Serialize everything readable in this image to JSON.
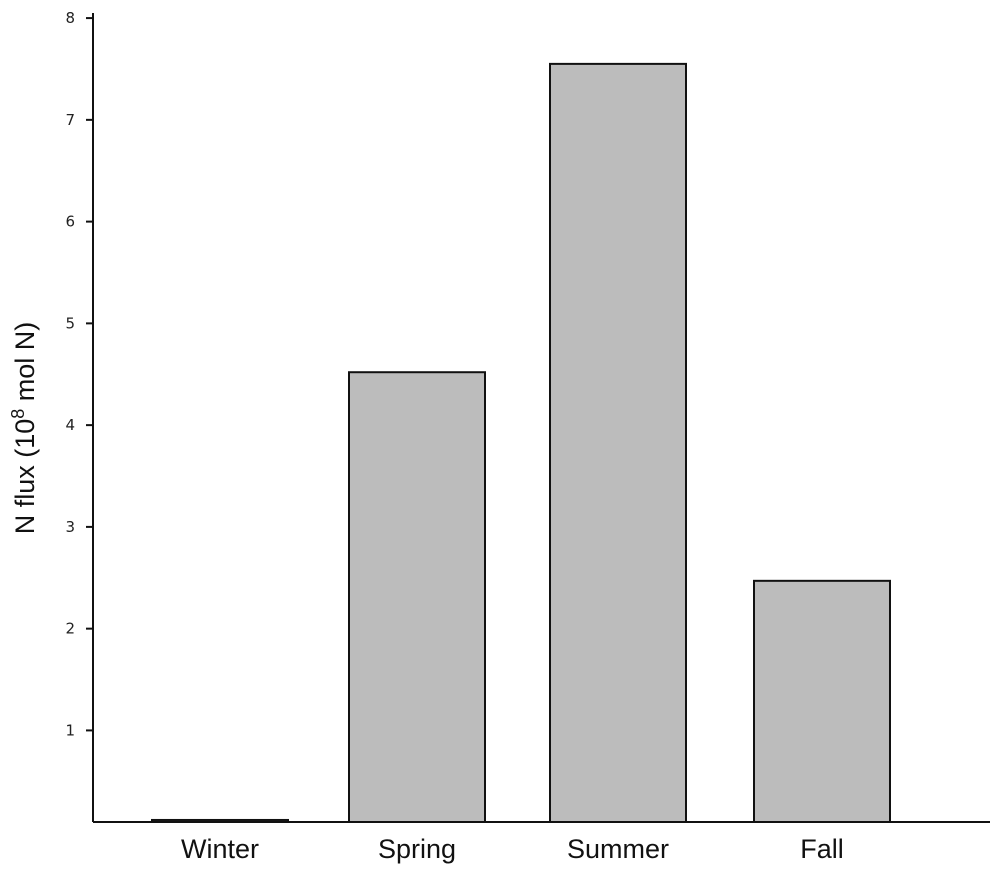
{
  "chart_data": {
    "type": "bar",
    "categories": [
      "Winter",
      "Spring",
      "Summer",
      "Fall"
    ],
    "values": [
      0.12,
      4.52,
      7.55,
      2.47
    ],
    "ylabel": {
      "prefix": "N flux (10",
      "superscript": "8",
      "suffix": " mol N)"
    },
    "yticks": [
      1,
      2,
      3,
      4,
      5,
      6,
      7,
      8
    ],
    "ylim": [
      0.1,
      8.05
    ],
    "grid": false,
    "bar_color": "#bcbcbc",
    "bar_edge_color": "#111111"
  }
}
